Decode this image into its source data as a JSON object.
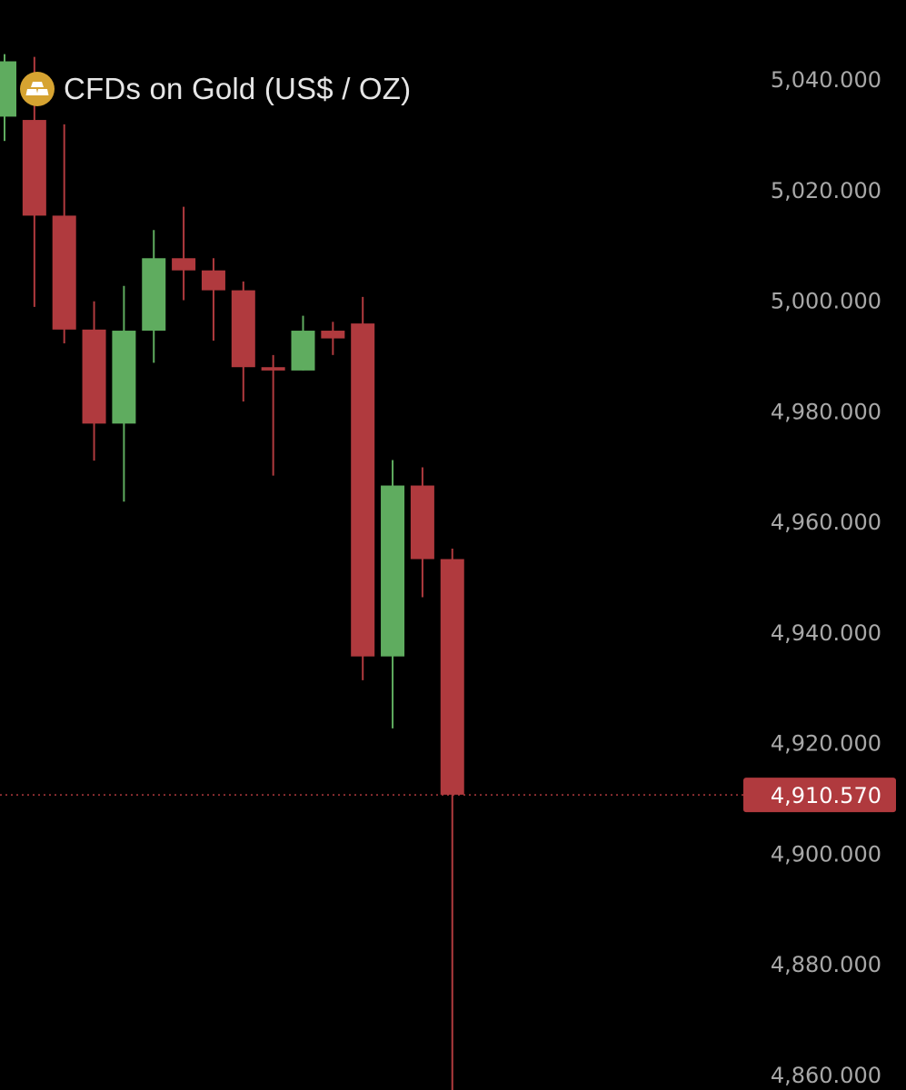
{
  "header": {
    "title": "CFDs on Gold (US$ / OZ)",
    "icon": "gold-bars-icon"
  },
  "colors": {
    "background": "#000000",
    "up": "#5fac5f",
    "down": "#b03a3e",
    "price_line": "#b03a3e",
    "icon_gold": "#d6a331",
    "axis_text": "#a8a8a8"
  },
  "chart_data": {
    "type": "candlestick",
    "title": "CFDs on Gold (US$ / OZ)",
    "xlabel": "",
    "ylabel": "",
    "ylim": [
      4860,
      5044
    ],
    "y_ticks": [
      5040,
      5020,
      5000,
      4980,
      4960,
      4940,
      4920,
      4900,
      4880,
      4860
    ],
    "y_tick_labels": [
      "5,040.000",
      "5,020.000",
      "5,000.000",
      "4,980.000",
      "4,960.000",
      "4,940.000",
      "4,920.000",
      "4,900.000",
      "4,880.000",
      "4,860.000"
    ],
    "grid": false,
    "current_price": 4910.57,
    "current_price_label": "4,910.570",
    "candles": [
      {
        "open": 5033.2,
        "high": 5044.5,
        "low": 5028.8,
        "close": 5043.2
      },
      {
        "open": 5032.6,
        "high": 5044.0,
        "low": 4998.8,
        "close": 5015.3
      },
      {
        "open": 5015.3,
        "high": 5031.8,
        "low": 4992.2,
        "close": 4994.7
      },
      {
        "open": 4994.7,
        "high": 4999.8,
        "low": 4971.0,
        "close": 4977.7
      },
      {
        "open": 4977.7,
        "high": 5002.6,
        "low": 4963.6,
        "close": 4994.5
      },
      {
        "open": 4994.5,
        "high": 5012.7,
        "low": 4988.7,
        "close": 5007.6
      },
      {
        "open": 5007.6,
        "high": 5016.9,
        "low": 5000.0,
        "close": 5005.4
      },
      {
        "open": 5005.4,
        "high": 5007.6,
        "low": 4992.7,
        "close": 5001.8
      },
      {
        "open": 5001.8,
        "high": 5003.4,
        "low": 4981.7,
        "close": 4987.9
      },
      {
        "open": 4987.9,
        "high": 4990.1,
        "low": 4968.3,
        "close": 4987.3
      },
      {
        "open": 4987.3,
        "high": 4997.2,
        "low": 4987.3,
        "close": 4994.5
      },
      {
        "open": 4994.5,
        "high": 4996.1,
        "low": 4990.1,
        "close": 4993.1
      },
      {
        "open": 4995.8,
        "high": 5000.6,
        "low": 4931.3,
        "close": 4935.6
      },
      {
        "open": 4935.6,
        "high": 4971.1,
        "low": 4922.6,
        "close": 4966.5
      },
      {
        "open": 4966.5,
        "high": 4969.8,
        "low": 4946.3,
        "close": 4953.2
      },
      {
        "open": 4953.2,
        "high": 4955.1,
        "low": 4856.0,
        "close": 4910.6
      }
    ]
  }
}
